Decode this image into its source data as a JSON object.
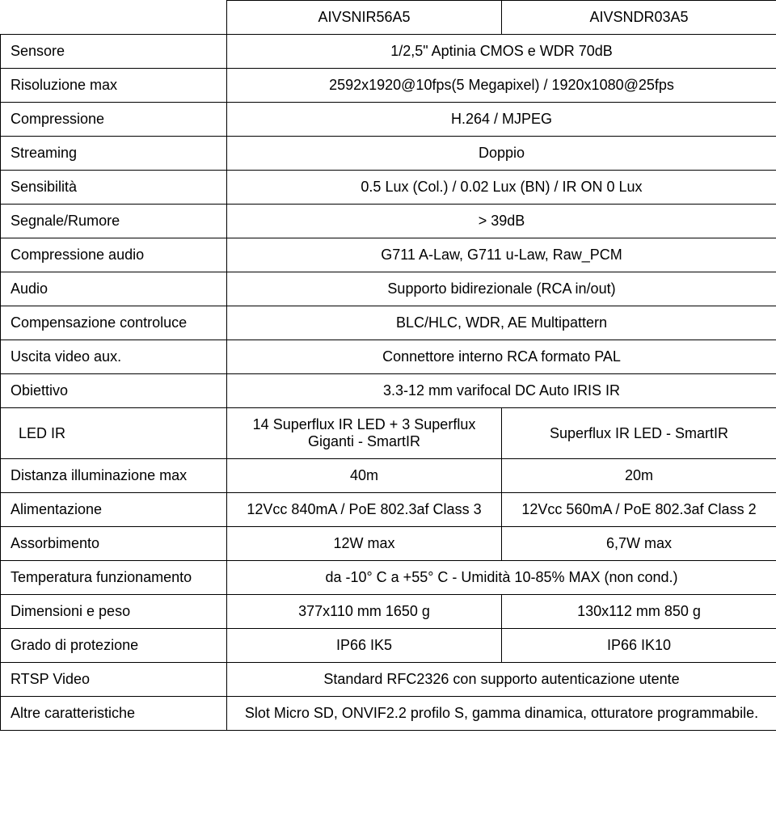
{
  "header": {
    "model1": "AIVSNIR56A5",
    "model2": "AIVSNDR03A5"
  },
  "rows": [
    {
      "label": "Sensore",
      "span": true,
      "value": "1/2,5\" Aptinia CMOS e WDR 70dB"
    },
    {
      "label": "Risoluzione max",
      "span": true,
      "value": "2592x1920@10fps(5 Megapixel) / 1920x1080@25fps"
    },
    {
      "label": "Compressione",
      "span": true,
      "value": "H.264 / MJPEG"
    },
    {
      "label": "Streaming",
      "span": true,
      "value": "Doppio"
    },
    {
      "label": "Sensibilità",
      "span": true,
      "value": "0.5 Lux (Col.) / 0.02 Lux (BN) / IR ON 0 Lux"
    },
    {
      "label": "Segnale/Rumore",
      "span": true,
      "value": "> 39dB"
    },
    {
      "label": "Compressione audio",
      "span": true,
      "value": "G711 A-Law, G711 u-Law, Raw_PCM"
    },
    {
      "label": "Audio",
      "span": true,
      "value": "Supporto bidirezionale (RCA in/out)"
    },
    {
      "label": "Compensazione controluce",
      "span": true,
      "value": "BLC/HLC, WDR, AE Multipattern"
    },
    {
      "label": "Uscita video aux.",
      "span": true,
      "value": "Connettore interno RCA formato PAL"
    },
    {
      "label": "Obiettivo",
      "span": true,
      "value": "3.3-12 mm varifocal DC Auto IRIS IR"
    },
    {
      "label": "LED IR",
      "span": false,
      "value1": "14 Superflux IR LED + 3 Superflux Giganti - SmartIR",
      "value2": "Superflux IR LED - SmartIR",
      "indent": true
    },
    {
      "label": "Distanza illuminazione max",
      "span": false,
      "value1": "40m",
      "value2": "20m"
    },
    {
      "label": "Alimentazione",
      "span": false,
      "value1": "12Vcc 840mA / PoE 802.3af Class 3",
      "value2": "12Vcc 560mA / PoE 802.3af Class 2"
    },
    {
      "label": "Assorbimento",
      "span": false,
      "value1": "12W max",
      "value2": "6,7W max"
    },
    {
      "label": "Temperatura funzionamento",
      "span": true,
      "value": "da -10° C a +55° C - Umidità 10-85% MAX (non cond.)"
    },
    {
      "label": "Dimensioni e peso",
      "span": false,
      "value1": "377x110 mm 1650 g",
      "value2": "130x112 mm 850 g"
    },
    {
      "label": "Grado di protezione",
      "span": false,
      "value1": "IP66 IK5",
      "value2": "IP66 IK10"
    },
    {
      "label": "RTSP Video",
      "span": true,
      "value": "Standard RFC2326 con supporto autenticazione utente"
    },
    {
      "label": "Altre caratteristiche",
      "span": true,
      "value": "Slot Micro SD, ONVIF2.2 profilo S, gamma dinamica, otturatore programmabile."
    }
  ]
}
